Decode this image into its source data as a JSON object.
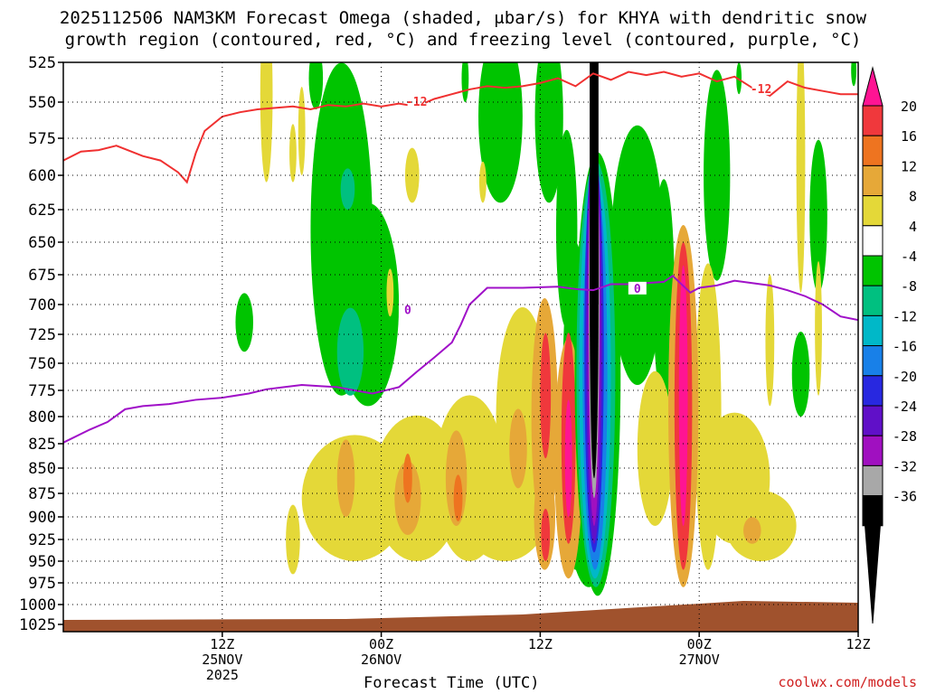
{
  "header": {
    "title_line1": "2025112506 NAM3KM Forecast Omega (shaded, μbar/s) for KHYA with dendritic snow",
    "title_line2": "growth region (contoured, red, °C) and freezing level (contoured, purple, °C)"
  },
  "footer": {
    "credit": "coolwx.com/models"
  },
  "chart_data": {
    "type": "time-height contour",
    "xlabel": "Forecast Time (UTC)",
    "ylabel": "",
    "x_range_hours": [
      -12,
      78
    ],
    "x_ticks": [
      {
        "hour": 6,
        "lines": [
          "12Z",
          "25NOV",
          "2025"
        ]
      },
      {
        "hour": 24,
        "lines": [
          "00Z",
          "26NOV"
        ]
      },
      {
        "hour": 42,
        "lines": [
          "12Z"
        ]
      },
      {
        "hour": 60,
        "lines": [
          "00Z",
          "27NOV"
        ]
      },
      {
        "hour": 78,
        "lines": [
          "12Z"
        ]
      }
    ],
    "y_ticks_hpa": [
      525,
      550,
      575,
      600,
      625,
      650,
      675,
      700,
      725,
      750,
      775,
      800,
      825,
      850,
      875,
      900,
      925,
      950,
      975,
      1000,
      1025
    ],
    "ylim": [
      1025,
      525
    ],
    "grid": "dotted",
    "colorbar": {
      "labels": [
        "20",
        "16",
        "12",
        "8",
        "4",
        "-4",
        "-8",
        "-12",
        "-16",
        "-20",
        "-24",
        "-28",
        "-32",
        "-36"
      ],
      "colors": [
        "#ff1493",
        "#f0383c",
        "#ee7420",
        "#e6a838",
        "#e4d838",
        "#ffffff",
        "#00c400",
        "#00c080",
        "#00b8c8",
        "#1880e8",
        "#2828e0",
        "#6010c8",
        "#a010c0",
        "#a8a8a8",
        "#000000"
      ]
    },
    "contours": [
      {
        "label": "-12",
        "color": "#f03030",
        "unit": "°C"
      },
      {
        "label": "0",
        "color": "#a010c8",
        "unit": "°C"
      }
    ]
  }
}
